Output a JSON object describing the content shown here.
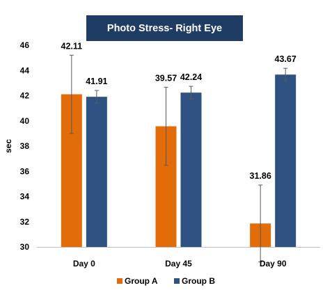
{
  "chart_data": {
    "type": "bar",
    "title": "Photo Stress- Right Eye",
    "ylabel": "sec",
    "xlabel": "",
    "categories": [
      "Day 0",
      "Day 45",
      "Day 90"
    ],
    "ylim": [
      30,
      46
    ],
    "yticks": [
      "30",
      "32",
      "34",
      "36",
      "38",
      "40",
      "42",
      "44",
      "46"
    ],
    "grid": false,
    "legend_position": "bottom",
    "series": [
      {
        "name": "Group A",
        "color": "#e36c0a",
        "values": [
          42.11,
          39.57,
          31.86
        ],
        "labels": [
          "42.11",
          "39.57",
          "31.86"
        ],
        "error": [
          3.1,
          3.1,
          3.05
        ]
      },
      {
        "name": "Group B",
        "color": "#2f5283",
        "values": [
          41.91,
          42.24,
          43.67
        ],
        "labels": [
          "41.91",
          "42.24",
          "43.67"
        ],
        "error": [
          0.5,
          0.5,
          0.5
        ]
      }
    ]
  }
}
